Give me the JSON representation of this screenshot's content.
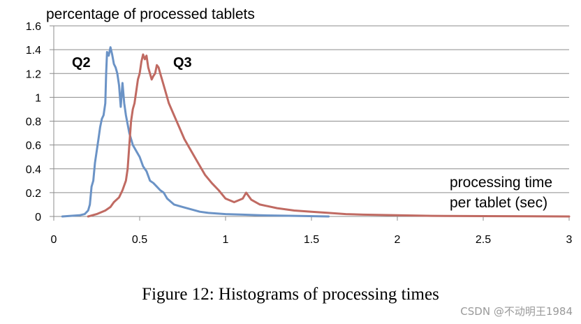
{
  "chart_data": {
    "type": "line",
    "title": "percentage of processed tablets",
    "ylabel": "percentage of processed tablets",
    "xlabel_lines": [
      "processing time",
      "per tablet (sec)"
    ],
    "xlim": [
      0,
      3
    ],
    "ylim": [
      0,
      1.6
    ],
    "xticks": [
      0,
      0.5,
      1,
      1.5,
      2,
      2.5,
      3
    ],
    "xtick_labels": [
      "0",
      "0.5",
      "1",
      "1.5",
      "2",
      "2.5",
      "3"
    ],
    "yticks": [
      0,
      0.2,
      0.4,
      0.6,
      0.8,
      1,
      1.2,
      1.4,
      1.6
    ],
    "ytick_labels": [
      "0",
      "0.2",
      "0.4",
      "0.6",
      "0.8",
      "1",
      "1.2",
      "1.4",
      "1.6"
    ],
    "grid": true,
    "series": [
      {
        "name": "Q2",
        "color": "#6b93c6",
        "points": [
          [
            0.05,
            0.0
          ],
          [
            0.1,
            0.005
          ],
          [
            0.15,
            0.01
          ],
          [
            0.18,
            0.02
          ],
          [
            0.2,
            0.05
          ],
          [
            0.21,
            0.1
          ],
          [
            0.22,
            0.25
          ],
          [
            0.23,
            0.3
          ],
          [
            0.24,
            0.45
          ],
          [
            0.25,
            0.55
          ],
          [
            0.26,
            0.65
          ],
          [
            0.27,
            0.75
          ],
          [
            0.28,
            0.82
          ],
          [
            0.29,
            0.85
          ],
          [
            0.3,
            0.95
          ],
          [
            0.305,
            1.2
          ],
          [
            0.31,
            1.38
          ],
          [
            0.32,
            1.35
          ],
          [
            0.33,
            1.42
          ],
          [
            0.34,
            1.36
          ],
          [
            0.35,
            1.28
          ],
          [
            0.36,
            1.25
          ],
          [
            0.37,
            1.2
          ],
          [
            0.38,
            1.1
          ],
          [
            0.39,
            0.92
          ],
          [
            0.4,
            1.12
          ],
          [
            0.41,
            0.95
          ],
          [
            0.42,
            0.85
          ],
          [
            0.44,
            0.7
          ],
          [
            0.46,
            0.6
          ],
          [
            0.48,
            0.55
          ],
          [
            0.5,
            0.5
          ],
          [
            0.52,
            0.42
          ],
          [
            0.54,
            0.38
          ],
          [
            0.56,
            0.3
          ],
          [
            0.58,
            0.28
          ],
          [
            0.6,
            0.25
          ],
          [
            0.62,
            0.22
          ],
          [
            0.64,
            0.2
          ],
          [
            0.66,
            0.15
          ],
          [
            0.7,
            0.1
          ],
          [
            0.75,
            0.08
          ],
          [
            0.8,
            0.06
          ],
          [
            0.85,
            0.04
          ],
          [
            0.9,
            0.03
          ],
          [
            1.0,
            0.02
          ],
          [
            1.1,
            0.015
          ],
          [
            1.2,
            0.01
          ],
          [
            1.4,
            0.005
          ],
          [
            1.6,
            0.0
          ]
        ]
      },
      {
        "name": "Q3",
        "color": "#c06a62",
        "points": [
          [
            0.2,
            0.0
          ],
          [
            0.25,
            0.02
          ],
          [
            0.3,
            0.05
          ],
          [
            0.33,
            0.08
          ],
          [
            0.35,
            0.12
          ],
          [
            0.38,
            0.16
          ],
          [
            0.4,
            0.22
          ],
          [
            0.42,
            0.3
          ],
          [
            0.43,
            0.4
          ],
          [
            0.44,
            0.6
          ],
          [
            0.45,
            0.8
          ],
          [
            0.46,
            0.9
          ],
          [
            0.47,
            0.95
          ],
          [
            0.48,
            1.05
          ],
          [
            0.49,
            1.15
          ],
          [
            0.5,
            1.2
          ],
          [
            0.51,
            1.3
          ],
          [
            0.52,
            1.36
          ],
          [
            0.53,
            1.32
          ],
          [
            0.54,
            1.35
          ],
          [
            0.55,
            1.25
          ],
          [
            0.56,
            1.2
          ],
          [
            0.57,
            1.15
          ],
          [
            0.58,
            1.18
          ],
          [
            0.59,
            1.2
          ],
          [
            0.6,
            1.27
          ],
          [
            0.61,
            1.25
          ],
          [
            0.62,
            1.2
          ],
          [
            0.63,
            1.15
          ],
          [
            0.65,
            1.05
          ],
          [
            0.67,
            0.95
          ],
          [
            0.7,
            0.85
          ],
          [
            0.73,
            0.75
          ],
          [
            0.76,
            0.65
          ],
          [
            0.8,
            0.55
          ],
          [
            0.84,
            0.45
          ],
          [
            0.88,
            0.35
          ],
          [
            0.92,
            0.28
          ],
          [
            0.96,
            0.22
          ],
          [
            1.0,
            0.15
          ],
          [
            1.05,
            0.12
          ],
          [
            1.1,
            0.15
          ],
          [
            1.12,
            0.2
          ],
          [
            1.15,
            0.14
          ],
          [
            1.2,
            0.1
          ],
          [
            1.3,
            0.07
          ],
          [
            1.4,
            0.05
          ],
          [
            1.5,
            0.04
          ],
          [
            1.6,
            0.03
          ],
          [
            1.7,
            0.02
          ],
          [
            1.8,
            0.015
          ],
          [
            2.0,
            0.01
          ],
          [
            2.2,
            0.005
          ],
          [
            2.5,
            0.003
          ],
          [
            3.0,
            0.0
          ]
        ]
      }
    ]
  },
  "caption": "Figure 12: Histograms of processing times",
  "watermark": "CSDN @不动明王1984"
}
